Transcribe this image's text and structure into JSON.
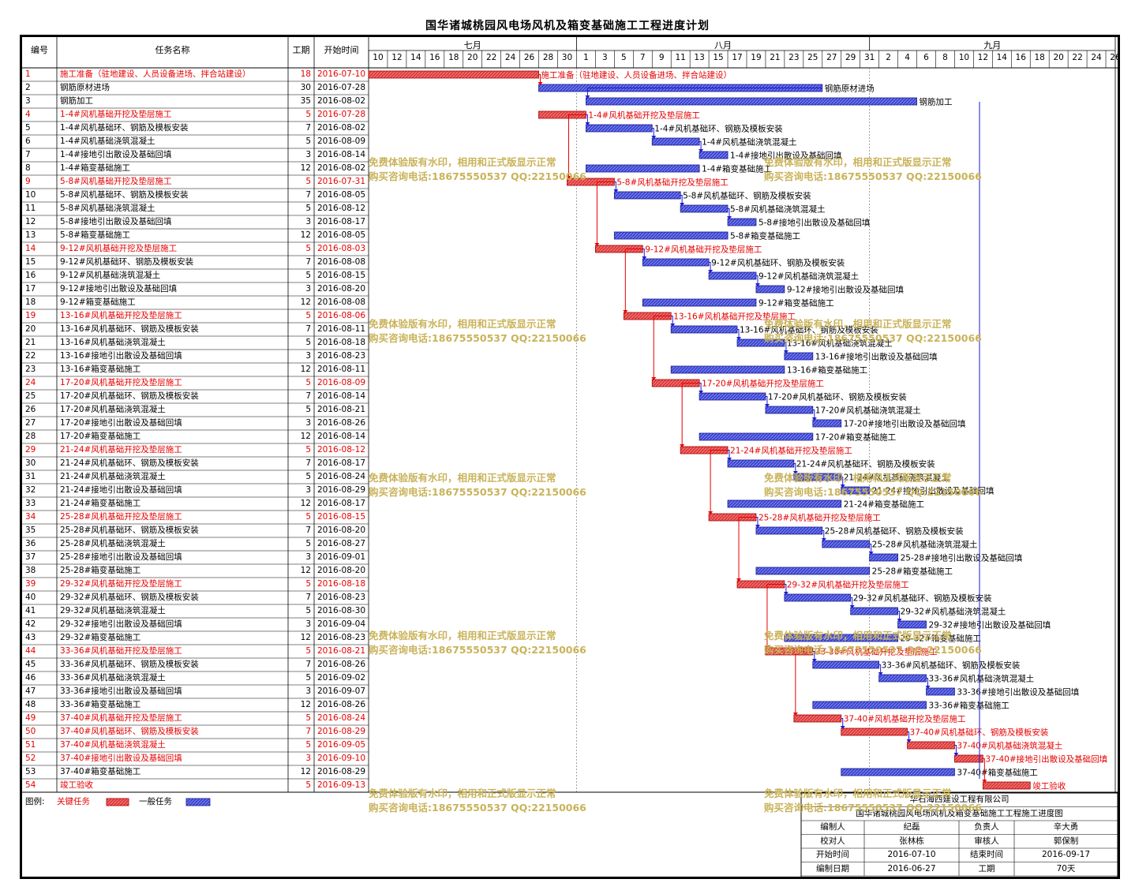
{
  "title": "国华诸城桃园风电场风机及箱变基础施工工程进度计划",
  "headers": {
    "id": "编号",
    "name": "任务名称",
    "dur": "工期",
    "start": "开始时间"
  },
  "months": [
    "七月",
    "八月",
    "九月"
  ],
  "day_ticks": [
    "10",
    "12",
    "14",
    "16",
    "18",
    "20",
    "22",
    "24",
    "26",
    "28",
    "30",
    "1",
    "3",
    "5",
    "7",
    "9",
    "11",
    "13",
    "15",
    "17",
    "19",
    "21",
    "23",
    "25",
    "27",
    "29",
    "31",
    "2",
    "4",
    "6",
    "8",
    "10",
    "12",
    "14",
    "16",
    "18",
    "20",
    "22",
    "24",
    "26"
  ],
  "legend": {
    "label": "图例:",
    "critical": "关键任务",
    "normal": "一般任务"
  },
  "colors": {
    "critical": "#e03a3a",
    "normal": "#3b45d6",
    "link": "#1a1ad6",
    "critical_link": "#e60000"
  },
  "footer": {
    "company": "华石海西建设工程有限公司",
    "drawing": "国华诸城桃园风电场风机及箱变基础施工工程施工进度图",
    "rows": [
      [
        "编制人",
        "纪磊",
        "负责人",
        "辛大勇"
      ],
      [
        "校对人",
        "张林栋",
        "审核人",
        "郭保制"
      ],
      [
        "开始时间",
        "2016-07-10",
        "结束时间",
        "2016-09-17"
      ],
      [
        "编制日期",
        "2016-06-27",
        "工期",
        "70天"
      ]
    ]
  },
  "watermark": {
    "line1": "免费体验版有水印，相用和正式版显示正常",
    "line2": "购买咨询电话:18675550537 QQ:22150066"
  },
  "chart_data": {
    "type": "gantt",
    "x_axis_start": "2016-07-10",
    "x_axis_end": "2016-09-26",
    "tasks": [
      {
        "id": "1",
        "name": "施工准备（驻地建设、人员设备进场、拌合站建设）",
        "dur": 18,
        "start": "2016-07-10",
        "critical": true
      },
      {
        "id": "2",
        "name": "钢筋原材进场",
        "dur": 30,
        "start": "2016-07-28",
        "critical": false
      },
      {
        "id": "3",
        "name": "钢筋加工",
        "dur": 35,
        "start": "2016-08-02",
        "critical": false
      },
      {
        "id": "4",
        "name": "1-4#风机基础开挖及垫层施工",
        "dur": 5,
        "start": "2016-07-28",
        "critical": true
      },
      {
        "id": "5",
        "name": "1-4#风机基础环、钢筋及模板安装",
        "dur": 7,
        "start": "2016-08-02",
        "critical": false
      },
      {
        "id": "6",
        "name": "1-4#风机基础浇筑混凝土",
        "dur": 5,
        "start": "2016-08-09",
        "critical": false
      },
      {
        "id": "7",
        "name": "1-4#接地引出散设及基础回填",
        "dur": 3,
        "start": "2016-08-14",
        "critical": false
      },
      {
        "id": "8",
        "name": "1-4#箱变基础施工",
        "dur": 12,
        "start": "2016-08-02",
        "critical": false
      },
      {
        "id": "9",
        "name": "5-8#风机基础开挖及垫层施工",
        "dur": 5,
        "start": "2016-07-31",
        "critical": true
      },
      {
        "id": "10",
        "name": "5-8#风机基础环、钢筋及模板安装",
        "dur": 7,
        "start": "2016-08-05",
        "critical": false
      },
      {
        "id": "11",
        "name": "5-8#风机基础浇筑混凝土",
        "dur": 5,
        "start": "2016-08-12",
        "critical": false
      },
      {
        "id": "12",
        "name": "5-8#接地引出散设及基础回填",
        "dur": 3,
        "start": "2016-08-17",
        "critical": false
      },
      {
        "id": "13",
        "name": "5-8#箱变基础施工",
        "dur": 12,
        "start": "2016-08-05",
        "critical": false
      },
      {
        "id": "14",
        "name": "9-12#风机基础开挖及垫层施工",
        "dur": 5,
        "start": "2016-08-03",
        "critical": true
      },
      {
        "id": "15",
        "name": "9-12#风机基础环、钢筋及模板安装",
        "dur": 7,
        "start": "2016-08-08",
        "critical": false
      },
      {
        "id": "16",
        "name": "9-12#风机基础浇筑混凝土",
        "dur": 5,
        "start": "2016-08-15",
        "critical": false
      },
      {
        "id": "17",
        "name": "9-12#接地引出散设及基础回填",
        "dur": 3,
        "start": "2016-08-20",
        "critical": false
      },
      {
        "id": "18",
        "name": "9-12#箱变基础施工",
        "dur": 12,
        "start": "2016-08-08",
        "critical": false
      },
      {
        "id": "19",
        "name": "13-16#风机基础开挖及垫层施工",
        "dur": 5,
        "start": "2016-08-06",
        "critical": true
      },
      {
        "id": "20",
        "name": "13-16#风机基础环、钢筋及模板安装",
        "dur": 7,
        "start": "2016-08-11",
        "critical": false
      },
      {
        "id": "21",
        "name": "13-16#风机基础浇筑混凝土",
        "dur": 5,
        "start": "2016-08-18",
        "critical": false
      },
      {
        "id": "22",
        "name": "13-16#接地引出散设及基础回填",
        "dur": 3,
        "start": "2016-08-23",
        "critical": false
      },
      {
        "id": "23",
        "name": "13-16#箱变基础施工",
        "dur": 12,
        "start": "2016-08-11",
        "critical": false
      },
      {
        "id": "24",
        "name": "17-20#风机基础开挖及垫层施工",
        "dur": 5,
        "start": "2016-08-09",
        "critical": true
      },
      {
        "id": "25",
        "name": "17-20#风机基础环、钢筋及模板安装",
        "dur": 7,
        "start": "2016-08-14",
        "critical": false
      },
      {
        "id": "26",
        "name": "17-20#风机基础浇筑混凝土",
        "dur": 5,
        "start": "2016-08-21",
        "critical": false
      },
      {
        "id": "27",
        "name": "17-20#接地引出散设及基础回填",
        "dur": 3,
        "start": "2016-08-26",
        "critical": false
      },
      {
        "id": "28",
        "name": "17-20#箱变基础施工",
        "dur": 12,
        "start": "2016-08-14",
        "critical": false
      },
      {
        "id": "29",
        "name": "21-24#风机基础开挖及垫层施工",
        "dur": 5,
        "start": "2016-08-12",
        "critical": true
      },
      {
        "id": "30",
        "name": "21-24#风机基础环、钢筋及模板安装",
        "dur": 7,
        "start": "2016-08-17",
        "critical": false
      },
      {
        "id": "31",
        "name": "21-24#风机基础浇筑混凝土",
        "dur": 5,
        "start": "2016-08-24",
        "critical": false
      },
      {
        "id": "32",
        "name": "21-24#接地引出散设及基础回填",
        "dur": 3,
        "start": "2016-08-29",
        "critical": false
      },
      {
        "id": "33",
        "name": "21-24#箱变基础施工",
        "dur": 12,
        "start": "2016-08-17",
        "critical": false
      },
      {
        "id": "34",
        "name": "25-28#风机基础开挖及垫层施工",
        "dur": 5,
        "start": "2016-08-15",
        "critical": true
      },
      {
        "id": "35",
        "name": "25-28#风机基础环、钢筋及模板安装",
        "dur": 7,
        "start": "2016-08-20",
        "critical": false
      },
      {
        "id": "36",
        "name": "25-28#风机基础浇筑混凝土",
        "dur": 5,
        "start": "2016-08-27",
        "critical": false
      },
      {
        "id": "37",
        "name": "25-28#接地引出散设及基础回填",
        "dur": 3,
        "start": "2016-09-01",
        "critical": false
      },
      {
        "id": "38",
        "name": "25-28#箱变基础施工",
        "dur": 12,
        "start": "2016-08-20",
        "critical": false
      },
      {
        "id": "39",
        "name": "29-32#风机基础开挖及垫层施工",
        "dur": 5,
        "start": "2016-08-18",
        "critical": true
      },
      {
        "id": "40",
        "name": "29-32#风机基础环、钢筋及模板安装",
        "dur": 7,
        "start": "2016-08-23",
        "critical": false
      },
      {
        "id": "41",
        "name": "29-32#风机基础浇筑混凝土",
        "dur": 5,
        "start": "2016-08-30",
        "critical": false
      },
      {
        "id": "42",
        "name": "29-32#接地引出散设及基础回填",
        "dur": 3,
        "start": "2016-09-04",
        "critical": false
      },
      {
        "id": "43",
        "name": "29-32#箱变基础施工",
        "dur": 12,
        "start": "2016-08-23",
        "critical": false
      },
      {
        "id": "44",
        "name": "33-36#风机基础开挖及垫层施工",
        "dur": 5,
        "start": "2016-08-21",
        "critical": true
      },
      {
        "id": "45",
        "name": "33-36#风机基础环、钢筋及模板安装",
        "dur": 7,
        "start": "2016-08-26",
        "critical": false
      },
      {
        "id": "46",
        "name": "33-36#风机基础浇筑混凝土",
        "dur": 5,
        "start": "2016-09-02",
        "critical": false
      },
      {
        "id": "47",
        "name": "33-36#接地引出散设及基础回填",
        "dur": 3,
        "start": "2016-09-07",
        "critical": false
      },
      {
        "id": "48",
        "name": "33-36#箱变基础施工",
        "dur": 12,
        "start": "2016-08-26",
        "critical": false
      },
      {
        "id": "49",
        "name": "37-40#风机基础开挖及垫层施工",
        "dur": 5,
        "start": "2016-08-24",
        "critical": true
      },
      {
        "id": "50",
        "name": "37-40#风机基础环、钢筋及模板安装",
        "dur": 7,
        "start": "2016-08-29",
        "critical": true
      },
      {
        "id": "51",
        "name": "37-40#风机基础浇筑混凝土",
        "dur": 5,
        "start": "2016-09-05",
        "critical": true
      },
      {
        "id": "52",
        "name": "37-40#接地引出散设及基础回填",
        "dur": 3,
        "start": "2016-09-10",
        "critical": true
      },
      {
        "id": "53",
        "name": "37-40#箱变基础施工",
        "dur": 12,
        "start": "2016-08-29",
        "critical": false
      },
      {
        "id": "54",
        "name": "竣工验收",
        "dur": 5,
        "start": "2016-09-13",
        "critical": true
      }
    ]
  }
}
